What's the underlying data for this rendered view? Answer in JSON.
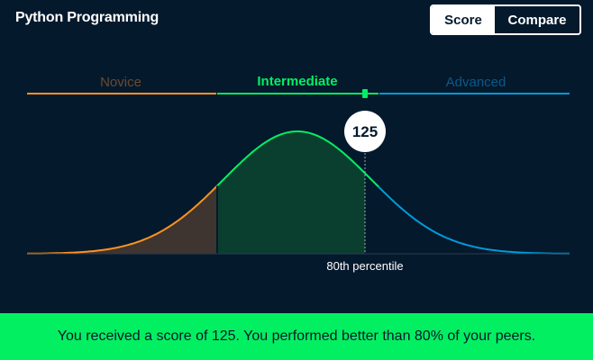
{
  "header": {
    "title": "Python Programming",
    "toggle": {
      "score_label": "Score",
      "compare_label": "Compare",
      "selected": "Score"
    }
  },
  "levels": [
    {
      "label": "Novice",
      "color": "#ff931e"
    },
    {
      "label": "Intermediate",
      "color": "#03ef62"
    },
    {
      "label": "Advanced",
      "color": "#009bd8"
    }
  ],
  "result": {
    "score": "125",
    "percentile_label": "80th percentile"
  },
  "banner": {
    "text": "You received a score of 125. You performed better than 80% of your peers."
  },
  "colors": {
    "background": "#05192d",
    "novice": "#ff931e",
    "intermediate": "#03ef62",
    "advanced": "#009bd8",
    "banner": "#03ef62"
  }
}
